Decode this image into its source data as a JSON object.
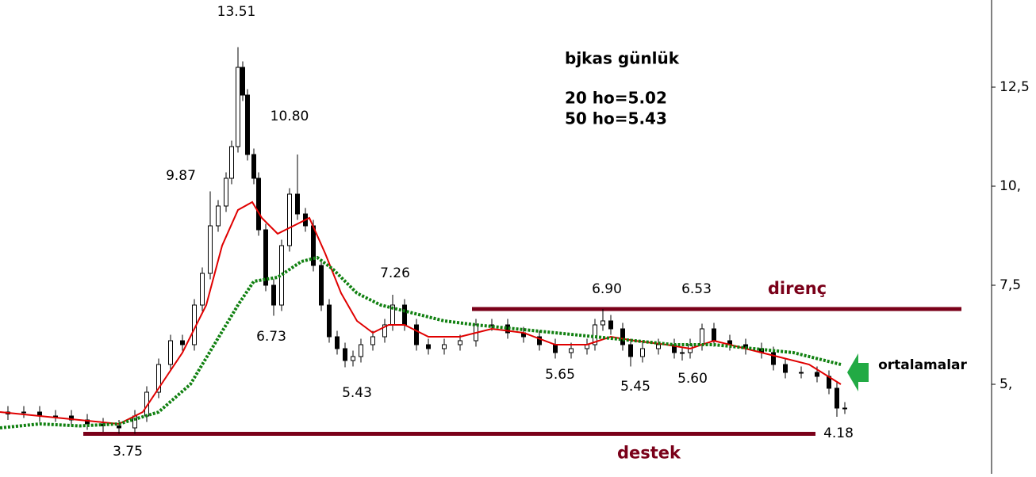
{
  "chart_data": {
    "type": "candlestick",
    "x": [
      10,
      30,
      50,
      70,
      90,
      110,
      130,
      150,
      170,
      185,
      200,
      215,
      230,
      245,
      255,
      265,
      275,
      285,
      292,
      300,
      306,
      312,
      320,
      326,
      335,
      345,
      355,
      365,
      375,
      385,
      395,
      405,
      415,
      425,
      435,
      445,
      455,
      470,
      485,
      495,
      510,
      525,
      540,
      560,
      580,
      600,
      620,
      640,
      660,
      680,
      700,
      720,
      740,
      750,
      760,
      770,
      785,
      795,
      810,
      830,
      850,
      860,
      870,
      885,
      900,
      920,
      940,
      960,
      975,
      990,
      1010,
      1030,
      1045,
      1055,
      1065
    ],
    "open": [
      4.25,
      4.3,
      4.3,
      4.2,
      4.2,
      4.1,
      4.0,
      3.95,
      3.9,
      4.2,
      4.8,
      5.5,
      6.1,
      6.0,
      7.0,
      7.8,
      9.0,
      9.5,
      10.2,
      11.0,
      13.0,
      12.3,
      10.8,
      10.2,
      8.9,
      7.5,
      7.0,
      8.5,
      9.8,
      9.3,
      9.0,
      8.0,
      7.0,
      6.2,
      5.9,
      5.6,
      5.7,
      6.0,
      6.2,
      6.5,
      7.0,
      6.5,
      6.0,
      5.9,
      6.0,
      6.1,
      6.5,
      6.5,
      6.3,
      6.2,
      6.0,
      5.8,
      5.9,
      6.0,
      6.5,
      6.6,
      6.4,
      6.0,
      5.7,
      5.9,
      6.0,
      5.8,
      5.8,
      6.0,
      6.4,
      6.1,
      6.0,
      5.9,
      5.8,
      5.5,
      5.3,
      5.3,
      5.2,
      4.9,
      4.4
    ],
    "high": [
      4.45,
      4.45,
      4.45,
      4.35,
      4.35,
      4.25,
      4.15,
      4.1,
      4.35,
      4.95,
      5.65,
      6.25,
      6.25,
      7.15,
      7.95,
      9.87,
      9.65,
      10.35,
      11.15,
      13.51,
      13.15,
      12.45,
      10.95,
      10.35,
      9.05,
      7.65,
      8.65,
      9.95,
      10.8,
      9.45,
      9.15,
      8.15,
      7.15,
      6.35,
      6.05,
      5.85,
      6.15,
      6.35,
      6.65,
      7.26,
      7.15,
      6.65,
      6.15,
      6.15,
      6.25,
      6.65,
      6.65,
      6.65,
      6.45,
      6.35,
      6.15,
      6.05,
      6.15,
      6.65,
      6.9,
      6.75,
      6.55,
      6.15,
      6.05,
      6.15,
      6.15,
      5.95,
      6.15,
      6.53,
      6.55,
      6.25,
      6.15,
      6.05,
      5.95,
      5.65,
      5.45,
      5.45,
      5.35,
      5.05,
      4.55
    ],
    "low": [
      4.1,
      4.15,
      4.05,
      4.05,
      3.95,
      3.85,
      3.8,
      3.75,
      3.75,
      4.05,
      4.65,
      5.35,
      5.85,
      5.85,
      6.85,
      7.65,
      8.85,
      9.35,
      10.05,
      10.85,
      12.15,
      10.65,
      10.05,
      8.75,
      7.35,
      6.73,
      6.85,
      8.35,
      9.15,
      8.85,
      7.85,
      6.85,
      6.05,
      5.75,
      5.43,
      5.45,
      5.55,
      5.85,
      6.05,
      6.35,
      6.35,
      5.85,
      5.75,
      5.75,
      5.85,
      5.95,
      6.35,
      6.15,
      6.05,
      5.85,
      5.65,
      5.65,
      5.75,
      5.85,
      6.35,
      6.25,
      5.85,
      5.45,
      5.55,
      5.75,
      5.65,
      5.6,
      5.65,
      5.85,
      5.95,
      5.85,
      5.75,
      5.65,
      5.35,
      5.15,
      5.15,
      5.05,
      4.75,
      4.18,
      4.25
    ],
    "close": [
      4.3,
      4.3,
      4.2,
      4.2,
      4.1,
      4.0,
      3.95,
      3.9,
      4.2,
      4.8,
      5.5,
      6.1,
      6.0,
      7.0,
      7.8,
      9.0,
      9.5,
      10.2,
      11.0,
      13.0,
      12.3,
      10.8,
      10.2,
      8.9,
      7.5,
      7.0,
      8.5,
      9.8,
      9.3,
      9.0,
      8.0,
      7.0,
      6.2,
      5.9,
      5.6,
      5.7,
      6.0,
      6.2,
      6.5,
      7.0,
      6.5,
      6.0,
      5.9,
      6.0,
      6.1,
      6.5,
      6.5,
      6.3,
      6.2,
      6.0,
      5.8,
      5.9,
      6.0,
      6.5,
      6.6,
      6.4,
      6.0,
      5.7,
      5.9,
      6.0,
      5.8,
      5.8,
      6.0,
      6.4,
      6.1,
      6.0,
      5.9,
      5.8,
      5.5,
      5.3,
      5.3,
      5.2,
      4.9,
      4.4,
      4.4
    ],
    "up_color": "#ffffff",
    "down_color": "#000000",
    "averages": [
      {
        "color": "#e00000",
        "style": "solid",
        "x": [
          0,
          100,
          150,
          180,
          200,
          230,
          260,
          280,
          300,
          318,
          330,
          350,
          370,
          390,
          410,
          430,
          450,
          470,
          490,
          510,
          540,
          580,
          620,
          660,
          700,
          740,
          770,
          800,
          840,
          870,
          900,
          940,
          980,
          1020,
          1060
        ],
        "values": [
          4.3,
          4.1,
          4.0,
          4.3,
          4.9,
          5.8,
          7.0,
          8.5,
          9.4,
          9.6,
          9.2,
          8.8,
          9.0,
          9.2,
          8.3,
          7.3,
          6.6,
          6.3,
          6.5,
          6.5,
          6.2,
          6.2,
          6.4,
          6.3,
          6.0,
          6.0,
          6.2,
          6.1,
          6.0,
          5.9,
          6.1,
          5.9,
          5.7,
          5.5,
          5.0
        ]
      },
      {
        "color": "#108010",
        "style": "dotted",
        "x": [
          0,
          50,
          100,
          150,
          200,
          240,
          270,
          300,
          320,
          350,
          380,
          400,
          420,
          450,
          480,
          520,
          560,
          600,
          650,
          700,
          750,
          800,
          850,
          900,
          950,
          1000,
          1040,
          1060
        ],
        "values": [
          3.9,
          4.0,
          3.95,
          4.0,
          4.3,
          5.0,
          6.0,
          7.0,
          7.6,
          7.7,
          8.1,
          8.2,
          7.9,
          7.3,
          7.0,
          6.8,
          6.6,
          6.5,
          6.4,
          6.3,
          6.2,
          6.1,
          6.0,
          6.0,
          5.9,
          5.8,
          5.6,
          5.5
        ]
      }
    ],
    "levels": [
      {
        "name": "direnç",
        "value": 6.9
      },
      {
        "name": "destek",
        "value": 3.75
      }
    ],
    "annotations": [
      "13.51",
      "10.80",
      "9.87",
      "6.73",
      "5.43",
      "7.26",
      "6.90",
      "6.53",
      "5.65",
      "5.45",
      "5.60",
      "4.18",
      "3.75",
      "ortalamalar"
    ],
    "notes": [
      "bjkas günlük",
      "20 ho=5.02",
      "50 ho=5.43"
    ],
    "xlim": [
      0,
      1250
    ],
    "ylim": [
      2.74,
      14.7
    ],
    "yticks": [
      {
        "value": 5,
        "label": "5,"
      },
      {
        "value": 7.5,
        "label": "7,5"
      },
      {
        "value": 10,
        "label": "10,"
      },
      {
        "value": 12.5,
        "label": "12,5"
      }
    ]
  }
}
